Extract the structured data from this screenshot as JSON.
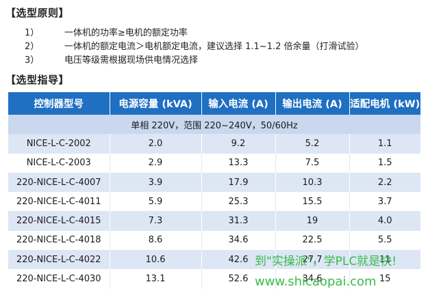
{
  "principle": {
    "title": "【选型原则】",
    "rules": [
      {
        "num": "1）",
        "text": "一体机的功率≥电机的额定功率"
      },
      {
        "num": "2）",
        "text": "一体机的额定电流＞电机额定电流，建议选择 1.1~1.2 倍余量（打滑试验）"
      },
      {
        "num": "3）",
        "text": "电压等级需根据现场供电情况选择"
      }
    ]
  },
  "guide": {
    "title": "【选型指导】"
  },
  "table": {
    "headers": [
      "控制器型号",
      "电源容量 (kVA)",
      "输入电流 (A)",
      "输出电流 (A)",
      "适配电机 (kW)"
    ],
    "note": "单相 220V，范围 220~240V，50/60Hz",
    "rows": [
      [
        "NICE-L-C-2002",
        "2.0",
        "9.2",
        "5.2",
        "1.1"
      ],
      [
        "NICE-L-C-2003",
        "2.9",
        "13.3",
        "7.5",
        "1.5"
      ],
      [
        "220-NICE-L-C-4007",
        "3.9",
        "17.9",
        "10.3",
        "2.2"
      ],
      [
        "220-NICE-L-C-4011",
        "5.9",
        "25.3",
        "15.5",
        "3.7"
      ],
      [
        "220-NICE-L-C-4015",
        "7.3",
        "31.3",
        "19",
        "4.0"
      ],
      [
        "220-NICE-L-C-4018",
        "8.6",
        "34.6",
        "22.5",
        "5.5"
      ],
      [
        "220-NICE-L-C-4022",
        "10.6",
        "42.6",
        "27.7",
        "11"
      ],
      [
        "220-NICE-L-C-4030",
        "13.1",
        "52.6",
        "34.6",
        "15"
      ]
    ]
  },
  "watermark": {
    "line1": "到\"实操派\"，学PLC就是快!",
    "line2": "www.shicaopai.com"
  }
}
